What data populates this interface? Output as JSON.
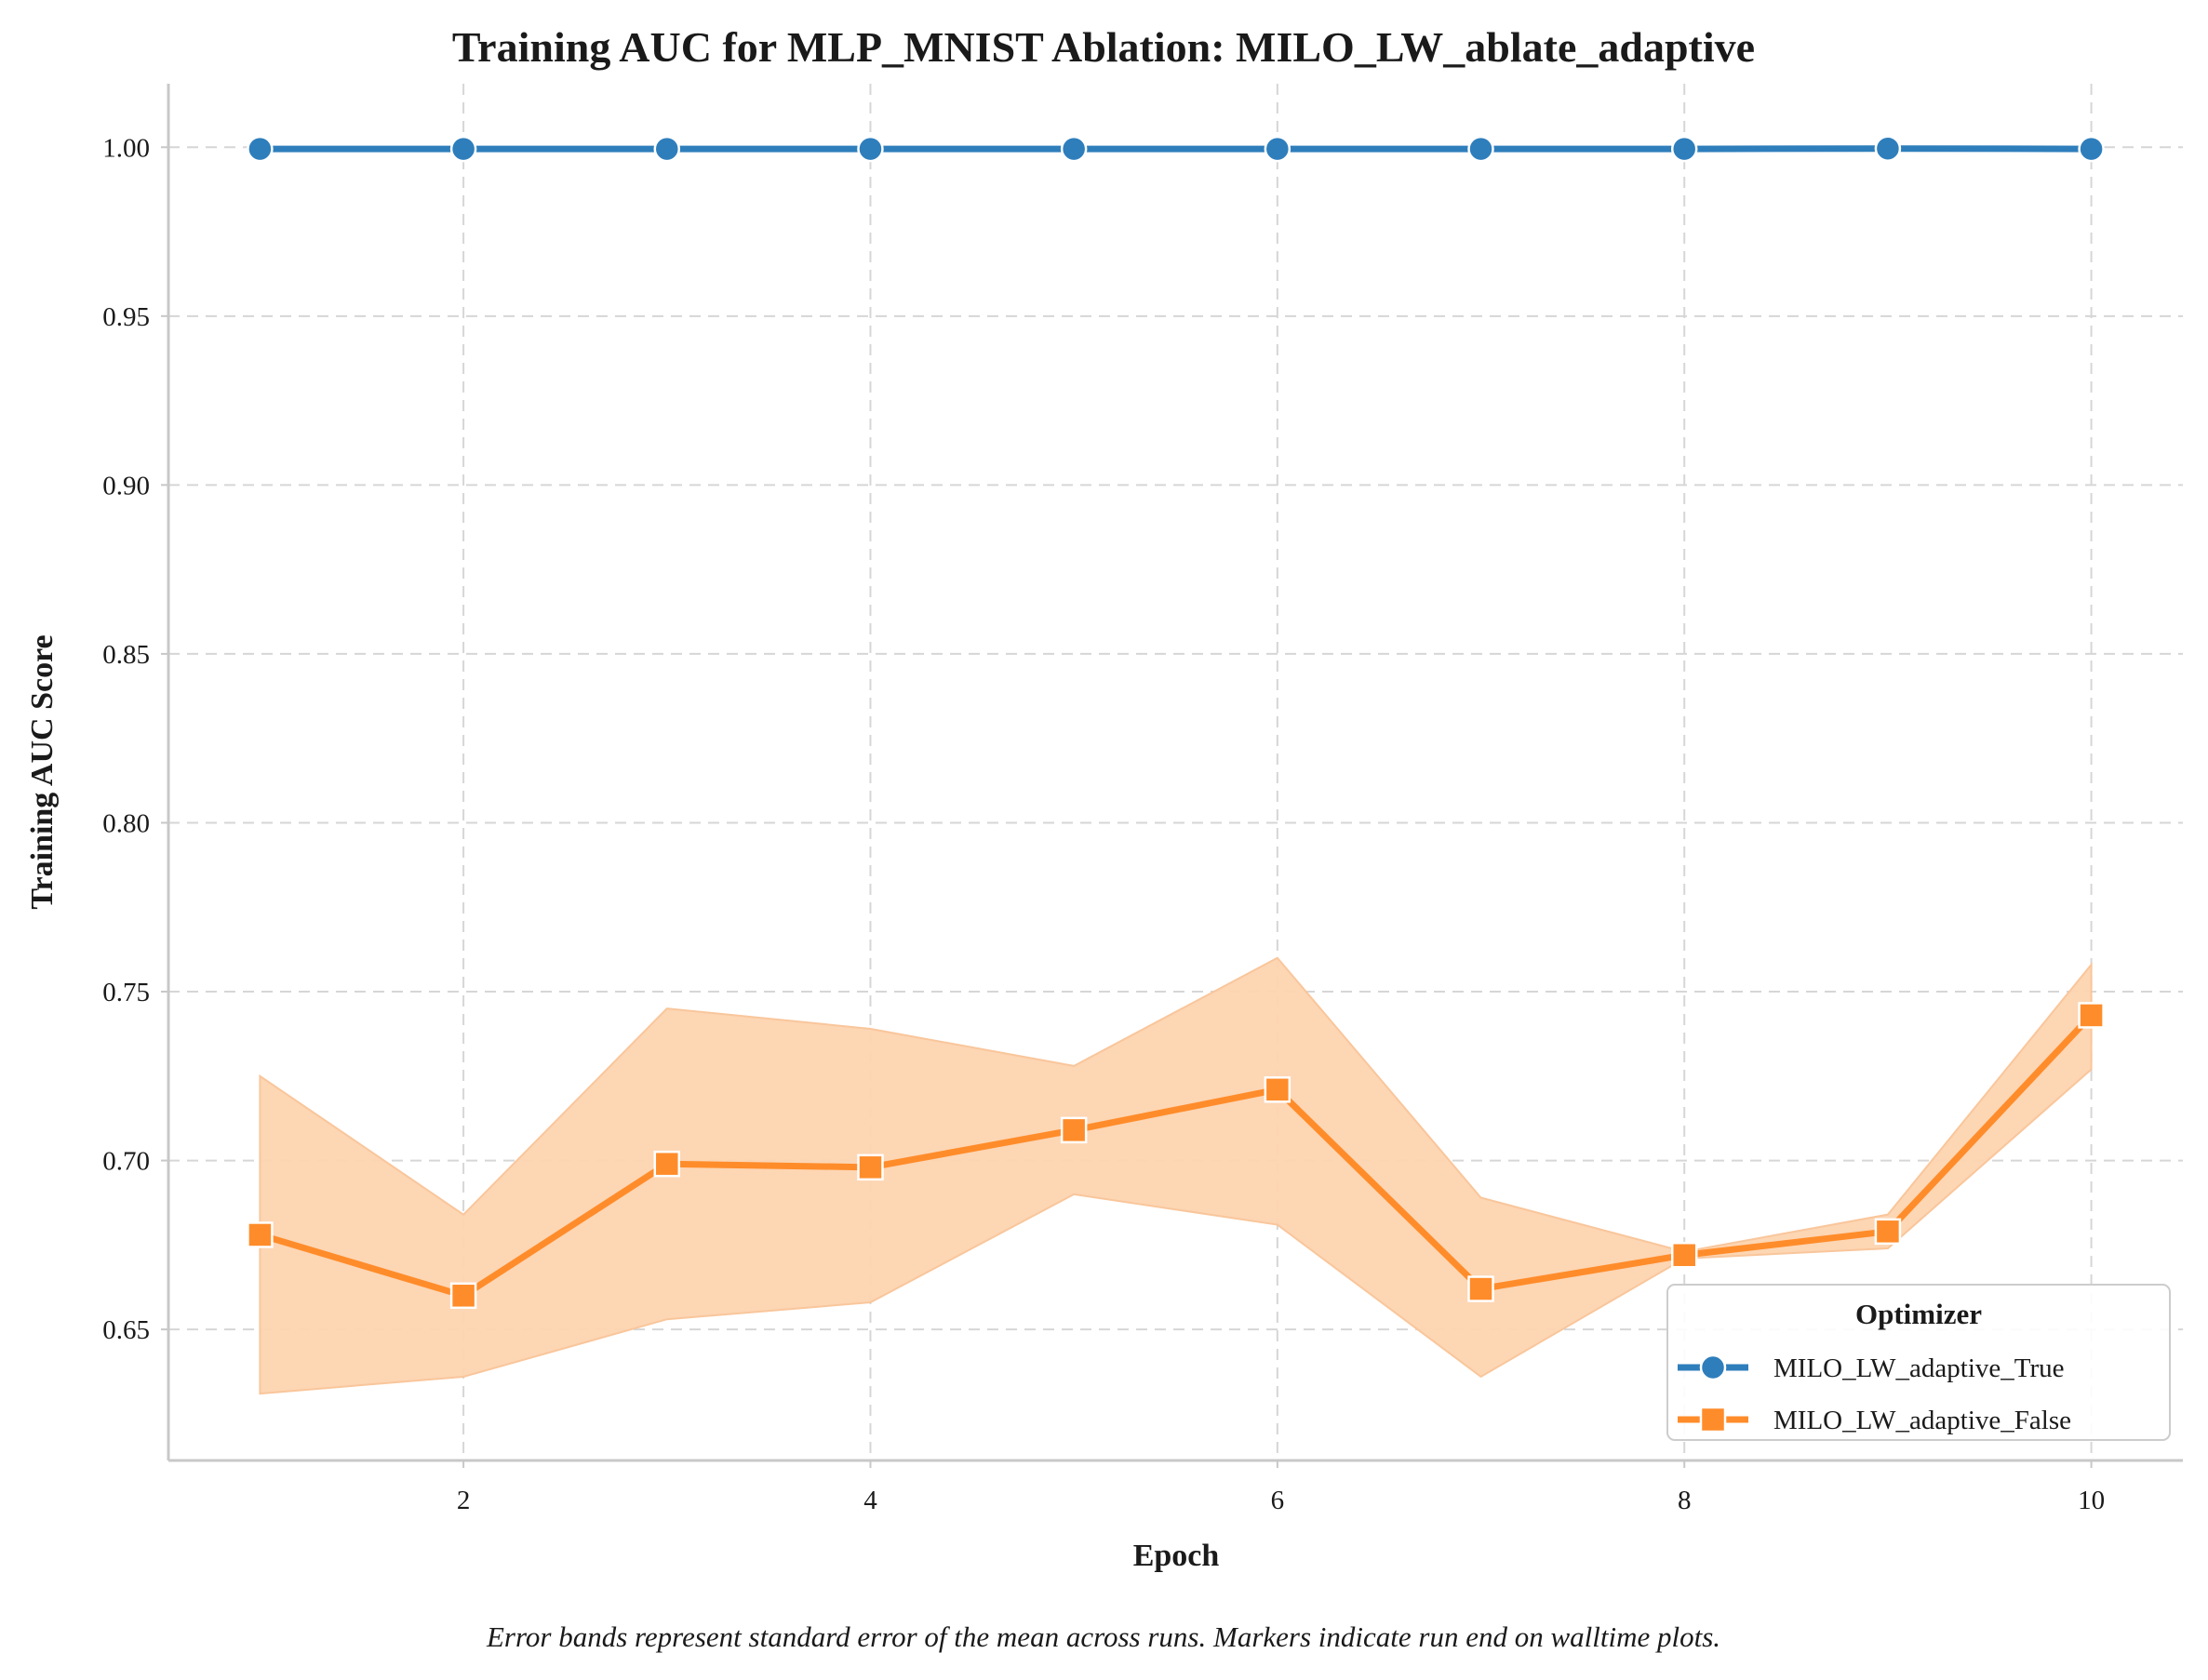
{
  "chart_data": {
    "type": "line",
    "title": "Training AUC for MLP_MNIST Ablation: MILO_LW_ablate_adaptive",
    "xlabel": "Epoch",
    "ylabel": "Training AUC Score",
    "xlim": [
      0.55,
      10.45
    ],
    "ylim": [
      0.6112,
      1.0188
    ],
    "xticks": [
      2,
      4,
      6,
      8,
      10
    ],
    "yticks": [
      0.65,
      0.7,
      0.75,
      0.8,
      0.85,
      0.9,
      0.95,
      1.0
    ],
    "ytick_labels": [
      "0.65",
      "0.70",
      "0.75",
      "0.80",
      "0.85",
      "0.90",
      "0.95",
      "1.00"
    ],
    "grid": true,
    "grid_style": "dashed",
    "legend": {
      "title": "Optimizer",
      "position": "lower-right"
    },
    "x": [
      1,
      2,
      3,
      4,
      5,
      6,
      7,
      8,
      9,
      10
    ],
    "series": [
      {
        "name": "MILO_LW_adaptive_True",
        "color": "#2e7ebc",
        "marker": "circle",
        "values": [
          0.9995,
          0.9995,
          0.9995,
          0.9995,
          0.9995,
          0.9995,
          0.9995,
          0.9995,
          0.9996,
          0.9995
        ]
      },
      {
        "name": "MILO_LW_adaptive_False",
        "color": "#ff8c2a",
        "band_color": "#fdd4b0",
        "marker": "square",
        "values": [
          0.678,
          0.66,
          0.699,
          0.698,
          0.709,
          0.721,
          0.662,
          0.672,
          0.679,
          0.743
        ],
        "band_lower": [
          0.631,
          0.636,
          0.653,
          0.658,
          0.69,
          0.681,
          0.636,
          0.671,
          0.674,
          0.727
        ],
        "band_upper": [
          0.725,
          0.684,
          0.745,
          0.739,
          0.728,
          0.76,
          0.689,
          0.673,
          0.684,
          0.758
        ]
      }
    ],
    "caption": "Error bands represent standard error of the mean across runs. Markers indicate run end on walltime plots."
  }
}
